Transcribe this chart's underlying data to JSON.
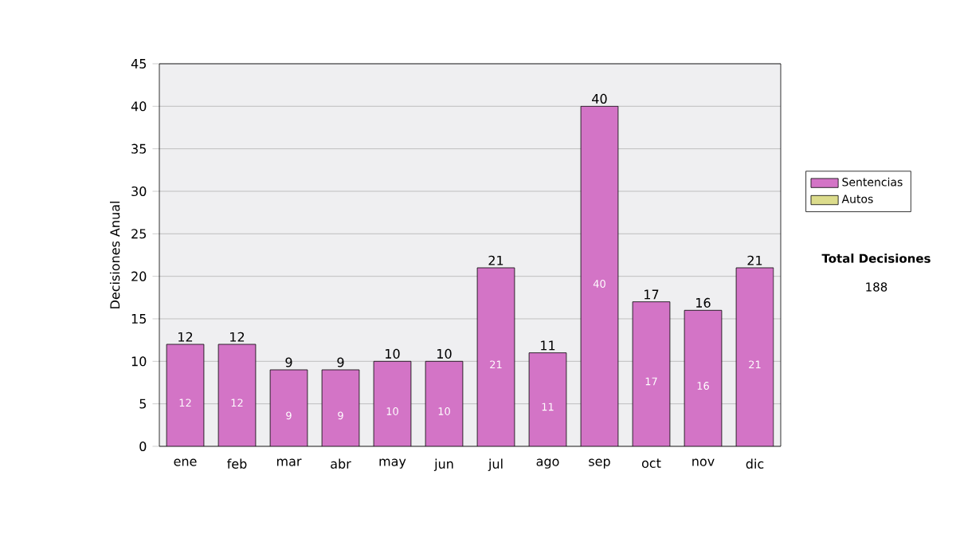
{
  "chart_data": {
    "type": "bar",
    "ylabel": "Decisiones Anual",
    "categories": [
      "ene",
      "feb",
      "mar",
      "abr",
      "may",
      "jun",
      "jul",
      "ago",
      "sep",
      "oct",
      "nov",
      "dic"
    ],
    "series": [
      {
        "name": "Sentencias",
        "color": "#d374c6",
        "values": [
          12,
          12,
          9,
          9,
          10,
          10,
          21,
          11,
          40,
          17,
          16,
          21
        ]
      },
      {
        "name": "Autos",
        "color": "#dcdc8c",
        "values": [
          null,
          null,
          null,
          null,
          null,
          null,
          null,
          null,
          null,
          null,
          null,
          null
        ]
      }
    ],
    "stacked": true,
    "data_labels": true,
    "totals": [
      "12",
      "12",
      "9",
      "9",
      "10",
      "10",
      "21",
      "11",
      "40",
      "17",
      "16",
      "21"
    ],
    "ylim": [
      0,
      45
    ],
    "yticks": [
      0,
      5,
      10,
      15,
      20,
      25,
      30,
      35,
      40,
      45
    ],
    "grid": "y",
    "legend": "right",
    "annotations": [
      "**Total Decisiones**",
      "188"
    ]
  }
}
